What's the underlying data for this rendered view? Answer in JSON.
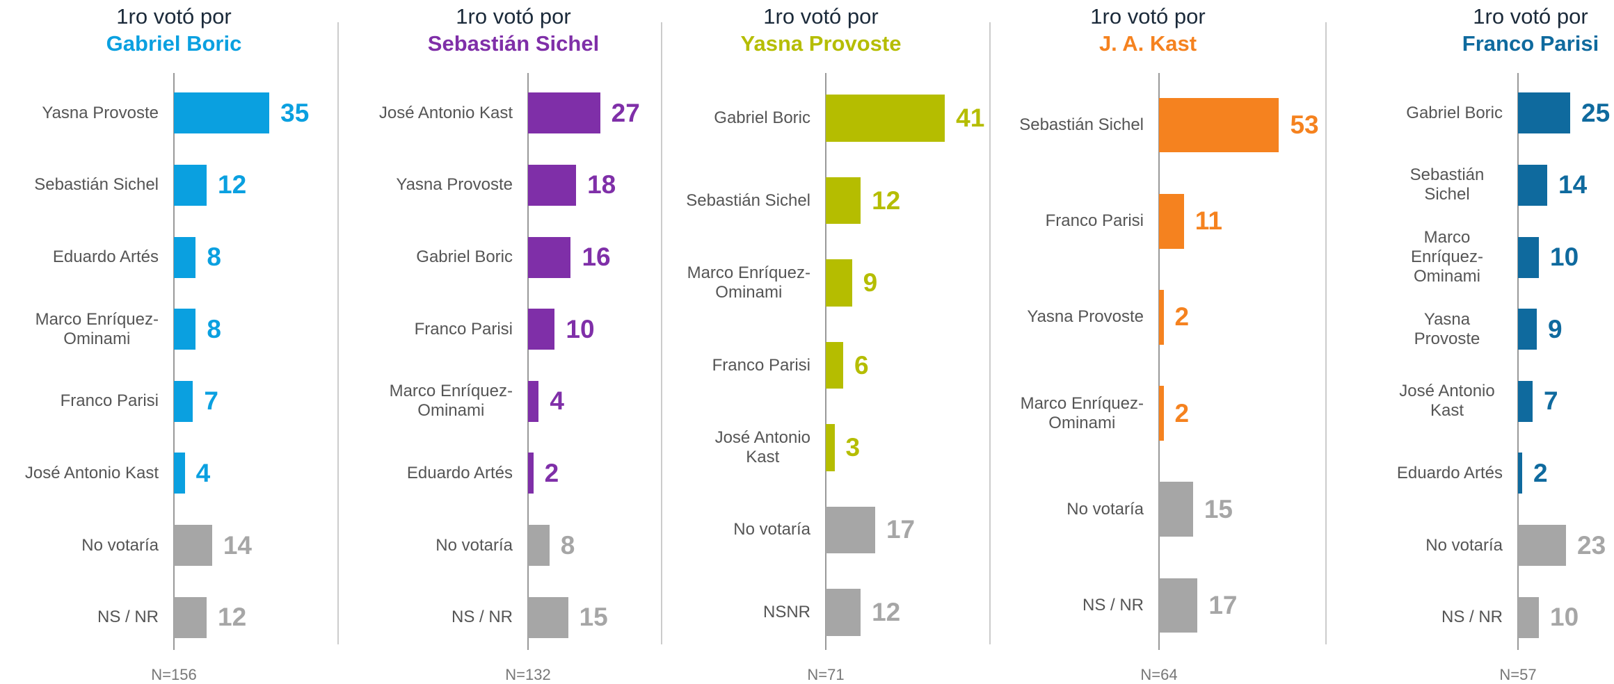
{
  "chart_data": [
    {
      "type": "bar",
      "title": "1ro votó por",
      "subtitle": "Gabriel Boric",
      "color": "#0aa0e0",
      "footnote": "N=156",
      "xlim": [
        0,
        49
      ],
      "categories": [
        "Yasna Provoste",
        "Sebastián Sichel",
        "Eduardo Artés",
        "Marco Enríquez-\nOminami",
        "Franco Parisi",
        "José Antonio Kast",
        "No votaría",
        "NS / NR"
      ],
      "values": [
        35,
        12,
        8,
        8,
        7,
        4,
        14,
        12
      ],
      "colors": [
        "#0aa0e0",
        "#0aa0e0",
        "#0aa0e0",
        "#0aa0e0",
        "#0aa0e0",
        "#0aa0e0",
        "#a6a6a6",
        "#a6a6a6"
      ]
    },
    {
      "type": "bar",
      "title": "1ro votó por",
      "subtitle": "Sebastián Sichel",
      "color": "#7f2fa8",
      "footnote": "N=132",
      "xlim": [
        0,
        50
      ],
      "categories": [
        "José Antonio Kast",
        "Yasna Provoste",
        "Gabriel Boric",
        "Franco Parisi",
        "Marco Enríquez-\nOminami",
        "Eduardo Artés",
        "No votaría",
        "NS / NR"
      ],
      "values": [
        27,
        18,
        16,
        10,
        4,
        2,
        8,
        15
      ],
      "colors": [
        "#7f2fa8",
        "#7f2fa8",
        "#7f2fa8",
        "#7f2fa8",
        "#7f2fa8",
        "#7f2fa8",
        "#a6a6a6",
        "#a6a6a6"
      ]
    },
    {
      "type": "bar",
      "title": "1ro votó por",
      "subtitle": "Yasna Provoste",
      "color": "#b5bd00",
      "footnote": "N=71",
      "xlim": [
        0,
        46
      ],
      "categories": [
        "Gabriel Boric",
        "Sebastián Sichel",
        "Marco Enríquez-\nOminami",
        "Franco Parisi",
        "José Antonio\nKast",
        "No votaría",
        "NSNR"
      ],
      "values": [
        41,
        12,
        9,
        6,
        3,
        17,
        12
      ],
      "colors": [
        "#b5bd00",
        "#b5bd00",
        "#b5bd00",
        "#b5bd00",
        "#b5bd00",
        "#a6a6a6",
        "#a6a6a6"
      ]
    },
    {
      "type": "bar",
      "title": "1ro votó por",
      "subtitle": "J. A. Kast",
      "color": "#f5821f",
      "footnote": "N=64",
      "xlim": [
        0,
        59
      ],
      "categories": [
        "Sebastián Sichel",
        "Franco Parisi",
        "Yasna Provoste",
        "Marco Enríquez-\nOminami",
        "No votaría",
        "NS / NR"
      ],
      "values": [
        53,
        11,
        2,
        2,
        15,
        17
      ],
      "colors": [
        "#f5821f",
        "#f5821f",
        "#f5821f",
        "#f5821f",
        "#a6a6a6",
        "#a6a6a6"
      ]
    },
    {
      "type": "bar",
      "title": "1ro votó por",
      "subtitle": "Franco Parisi",
      "color": "#0f6a9e",
      "footnote": "N=57",
      "xlim": [
        0,
        64
      ],
      "categories": [
        "Gabriel Boric",
        "Sebastián Sichel",
        "Marco Enríquez-\nOminami",
        "Yasna Provoste",
        "José Antonio Kast",
        "Eduardo Artés",
        "No votaría",
        "NS / NR"
      ],
      "values": [
        25,
        14,
        10,
        9,
        7,
        2,
        23,
        10
      ],
      "colors": [
        "#0f6a9e",
        "#0f6a9e",
        "#0f6a9e",
        "#0f6a9e",
        "#0f6a9e",
        "#0f6a9e",
        "#a6a6a6",
        "#a6a6a6"
      ]
    }
  ]
}
